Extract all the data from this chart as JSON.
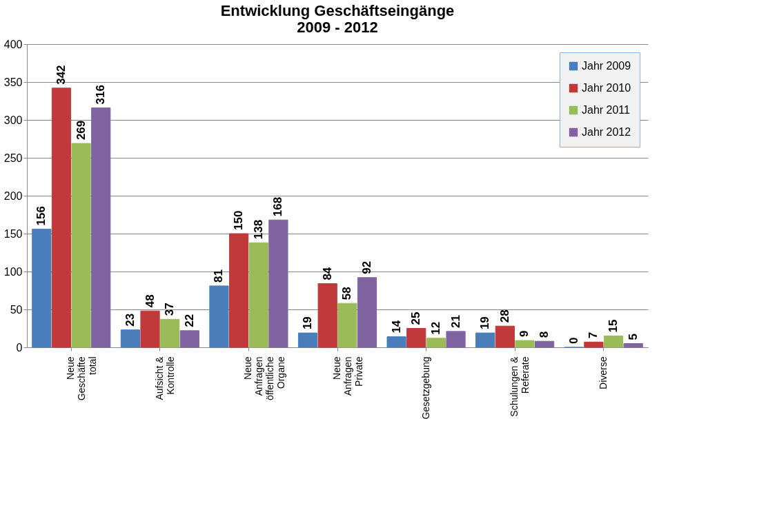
{
  "chart_data": {
    "type": "bar",
    "title": "Entwicklung Geschäftseingänge\n2009 - 2012",
    "categories": [
      "Neue\nGeschäfte\ntotal",
      "Aufsicht &\nKontrolle",
      "Neue\nAnfragen\nöffentliche\nOrgane",
      "Neue\nAnfragen\nPrivate",
      "Gesetzgebung",
      "Schulungen &\nReferate",
      "Diverse"
    ],
    "series": [
      {
        "name": "Jahr 2009",
        "color": "#4a7ebb",
        "values": [
          156,
          23,
          81,
          19,
          14,
          19,
          0
        ]
      },
      {
        "name": "Jahr 2010",
        "color": "#c0393b",
        "values": [
          342,
          48,
          150,
          84,
          25,
          28,
          7
        ]
      },
      {
        "name": "Jahr 2011",
        "color": "#9bbb59",
        "values": [
          269,
          37,
          138,
          58,
          12,
          9,
          15
        ]
      },
      {
        "name": "Jahr 2012",
        "color": "#8064a2",
        "values": [
          316,
          22,
          168,
          92,
          21,
          8,
          5
        ]
      }
    ],
    "ylim": [
      0,
      400
    ],
    "yticks": [
      0,
      50,
      100,
      150,
      200,
      250,
      300,
      350,
      400
    ],
    "grid": "y",
    "legend": "top right",
    "data_labels": true
  }
}
